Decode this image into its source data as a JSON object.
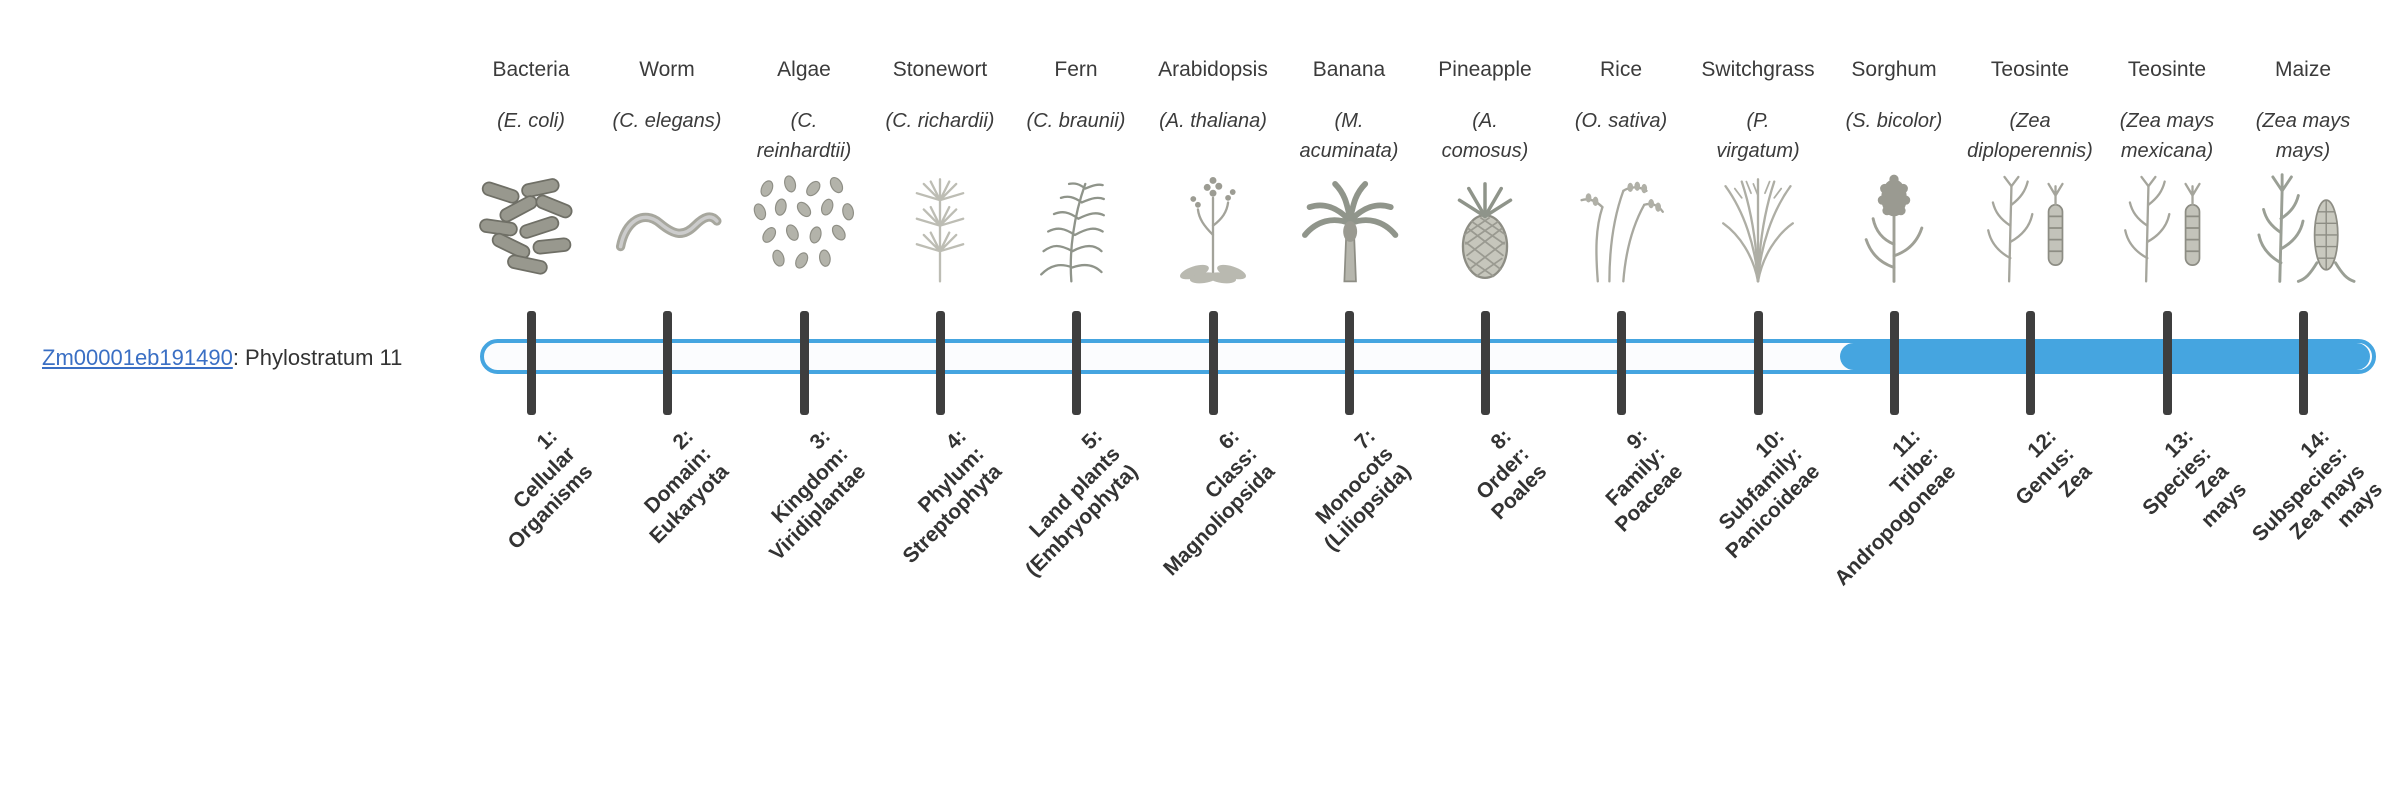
{
  "gene": {
    "id": "Zm00001eb191490",
    "phylostratum_label": ": Phylostratum 11"
  },
  "track": {
    "fill_start_stratum": 11,
    "fill_end_stratum": 14
  },
  "colors": {
    "accent_blue": "#45a5e0",
    "link_blue": "#3a6fc4",
    "tick": "#3e3e3e",
    "text": "#333333"
  },
  "strata": [
    {
      "index": 1,
      "common_name": "Bacteria",
      "scientific_name_lines": [
        "(E. coli)"
      ],
      "icon": "bacteria-icon",
      "label_lines": [
        "1:",
        "Cellular",
        "Organisms"
      ]
    },
    {
      "index": 2,
      "common_name": "Worm",
      "scientific_name_lines": [
        "(C. elegans)"
      ],
      "icon": "worm-icon",
      "label_lines": [
        "2:",
        "Domain:",
        "Eukaryota"
      ]
    },
    {
      "index": 3,
      "common_name": "Algae",
      "scientific_name_lines": [
        "(C.",
        "reinhardtii)"
      ],
      "icon": "algae-icon",
      "label_lines": [
        "3:",
        "Kingdom:",
        "Viridiplantae"
      ]
    },
    {
      "index": 4,
      "common_name": "Stonewort",
      "scientific_name_lines": [
        "(C. richardii)"
      ],
      "icon": "stonewort-icon",
      "label_lines": [
        "4:",
        "Phylum:",
        "Streptophyta"
      ]
    },
    {
      "index": 5,
      "common_name": "Fern",
      "scientific_name_lines": [
        "(C. braunii)"
      ],
      "icon": "fern-icon",
      "label_lines": [
        "5:",
        "Land plants",
        "(Embryophyta)"
      ]
    },
    {
      "index": 6,
      "common_name": "Arabidopsis",
      "scientific_name_lines": [
        "(A. thaliana)"
      ],
      "icon": "arabidopsis-icon",
      "label_lines": [
        "6:",
        "Class:",
        "Magnoliopsida"
      ]
    },
    {
      "index": 7,
      "common_name": "Banana",
      "scientific_name_lines": [
        "(M.",
        "acuminata)"
      ],
      "icon": "banana-tree-icon",
      "label_lines": [
        "7:",
        "Monocots",
        "(Liliopsida)"
      ]
    },
    {
      "index": 8,
      "common_name": "Pineapple",
      "scientific_name_lines": [
        "(A.",
        "comosus)"
      ],
      "icon": "pineapple-icon",
      "label_lines": [
        "8:",
        "Order:",
        "Poales"
      ]
    },
    {
      "index": 9,
      "common_name": "Rice",
      "scientific_name_lines": [
        "(O. sativa)"
      ],
      "icon": "rice-icon",
      "label_lines": [
        "9:",
        "Family:",
        "Poaceae"
      ]
    },
    {
      "index": 10,
      "common_name": "Switchgrass",
      "scientific_name_lines": [
        "(P.",
        "virgatum)"
      ],
      "icon": "switchgrass-icon",
      "label_lines": [
        "10:",
        "Subfamily:",
        "Panicoideae"
      ]
    },
    {
      "index": 11,
      "common_name": "Sorghum",
      "scientific_name_lines": [
        "(S. bicolor)"
      ],
      "icon": "sorghum-icon",
      "label_lines": [
        "11:",
        "Tribe:",
        "Andropogoneae"
      ]
    },
    {
      "index": 12,
      "common_name": "Teosinte",
      "scientific_name_lines": [
        "(Zea",
        "diploperennis)"
      ],
      "icon": "teosinte-icon",
      "label_lines": [
        "12:",
        "Genus:",
        "Zea"
      ]
    },
    {
      "index": 13,
      "common_name": "Teosinte",
      "scientific_name_lines": [
        "(Zea mays",
        "mexicana)"
      ],
      "icon": "teosinte-icon",
      "label_lines": [
        "13:",
        "Species:",
        "Zea",
        "mays"
      ]
    },
    {
      "index": 14,
      "common_name": "Maize",
      "scientific_name_lines": [
        "(Zea mays",
        "mays)"
      ],
      "icon": "maize-icon",
      "label_lines": [
        "14:",
        "Subspecies:",
        "Zea mays",
        "mays"
      ]
    }
  ]
}
